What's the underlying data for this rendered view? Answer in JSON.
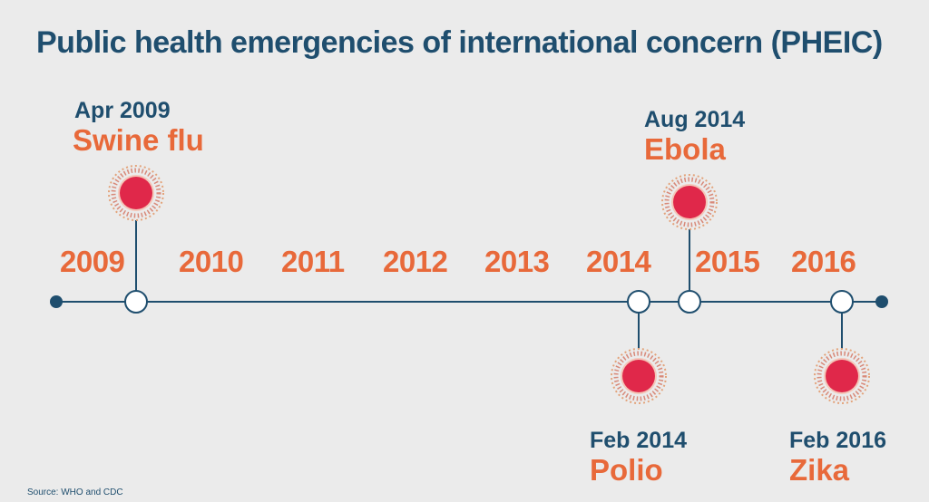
{
  "title": "Public health emergencies of international concern (PHEIC)",
  "years": [
    "2009",
    "2010",
    "2011",
    "2012",
    "2013",
    "2014",
    "2015",
    "2016"
  ],
  "events": [
    {
      "date": "Apr 2009",
      "name": "Swine flu"
    },
    {
      "date": "Aug 2014",
      "name": "Ebola"
    },
    {
      "date": "Feb 2014",
      "name": "Polio"
    },
    {
      "date": "Feb 2016",
      "name": "Zika"
    }
  ],
  "source": "Source: WHO and CDC",
  "colors": {
    "title": "#1f4e6e",
    "accent": "#e8693a",
    "virus_core": "#e0284a",
    "line": "#1f4e6e"
  },
  "icons": {
    "virus": "virus-icon"
  }
}
